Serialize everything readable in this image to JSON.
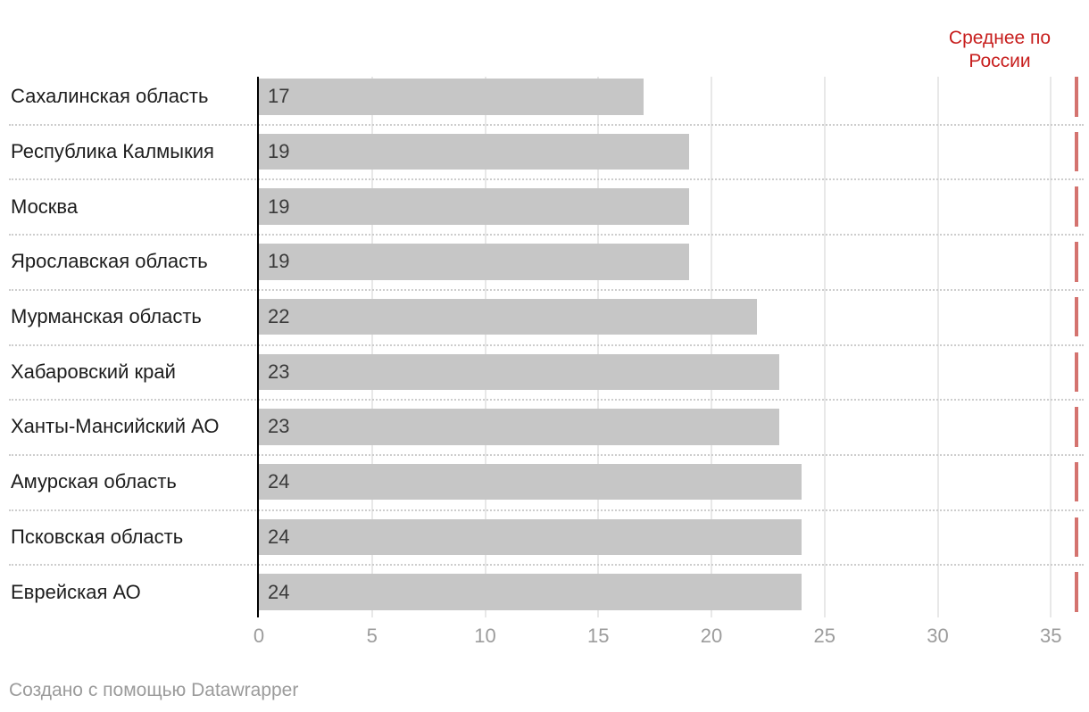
{
  "chart_data": {
    "type": "bar",
    "orientation": "horizontal",
    "title": "",
    "categories": [
      "Сахалинская область",
      "Республика Калмыкия",
      "Москва",
      "Ярославская область",
      "Мурманская область",
      "Хабаровский край",
      "Ханты-Мансийский АО",
      "Амурская область",
      "Псковская область",
      "Еврейская АО"
    ],
    "values": [
      17,
      19,
      19,
      19,
      22,
      23,
      23,
      24,
      24,
      24
    ],
    "x_ticks": [
      0,
      5,
      10,
      15,
      20,
      25,
      30,
      35
    ],
    "xlim": [
      0,
      36.5
    ],
    "grid": true,
    "legend_position": "none",
    "bar_color": "#c6c6c6",
    "reference_line": {
      "value": 36,
      "label": "Среднее по России",
      "line_color": "#d4736f",
      "label_color": "#c71e1d"
    }
  },
  "footer": {
    "text": "Создано с помощью Datawrapper"
  }
}
